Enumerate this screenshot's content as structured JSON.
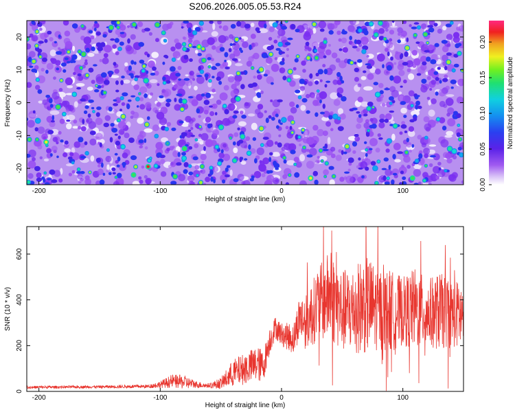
{
  "page": {
    "title": "S206.2026.005.05.53.R24"
  },
  "colors": {
    "snr_line": "#e8362f",
    "heatmap_low": "#ffffff",
    "heatmap_mid": "#8a3cf0",
    "heatmap_high": "#ff2060"
  },
  "chart_data": [
    {
      "type": "heatmap",
      "title": "S206.2026.005.05.53.R24",
      "xlabel": "Height of straight line (km)",
      "ylabel": "Frequency (Hz)",
      "xlim": [
        -210,
        150
      ],
      "ylim": [
        -25,
        25
      ],
      "xticks": [
        -200,
        -100,
        0,
        100
      ],
      "yticks": [
        -20,
        -10,
        0,
        10,
        20
      ],
      "colorbar": {
        "label": "Normalized spectral amplitude",
        "range": [
          0,
          0.23
        ],
        "ticks": [
          "0.00",
          "0.05",
          "0.10",
          "0.15",
          "0.20"
        ],
        "colormap": "white-purple-blue-cyan-green-yellow-red-pink"
      },
      "description_values": "dense speckled noise field, typical amplitude 0.01-0.06, scattered peaks up to ~0.2"
    },
    {
      "type": "line",
      "xlabel": "Height of straight line (km)",
      "ylabel": "SNR (10 * v/v)",
      "xlim": [
        -210,
        150
      ],
      "ylim": [
        0,
        720
      ],
      "xticks": [
        -200,
        -100,
        0,
        100
      ],
      "yticks": [
        0,
        200,
        400,
        600
      ],
      "series": [
        {
          "name": "SNR",
          "envelope": {
            "x": [
              -210,
              -150,
              -110,
              -100,
              -90,
              -80,
              -70,
              -60,
              -50,
              -40,
              -30,
              -20,
              -15,
              -10,
              -5,
              0,
              5,
              10,
              15,
              20,
              30,
              40,
              50,
              60,
              70,
              80,
              90,
              100,
              110,
              120,
              130,
              140,
              150
            ],
            "mid": [
              18,
              20,
              22,
              30,
              45,
              40,
              30,
              25,
              35,
              80,
              100,
              120,
              110,
              220,
              280,
              250,
              240,
              230,
              330,
              300,
              380,
              420,
              350,
              360,
              380,
              360,
              350,
              350,
              360,
              340,
              350,
              340,
              330
            ],
            "amp": [
              6,
              6,
              8,
              15,
              30,
              30,
              15,
              10,
              25,
              60,
              70,
              80,
              70,
              60,
              50,
              50,
              60,
              70,
              100,
              120,
              160,
              200,
              180,
              190,
              220,
              180,
              180,
              150,
              180,
              150,
              170,
              150,
              150
            ]
          }
        }
      ]
    }
  ]
}
